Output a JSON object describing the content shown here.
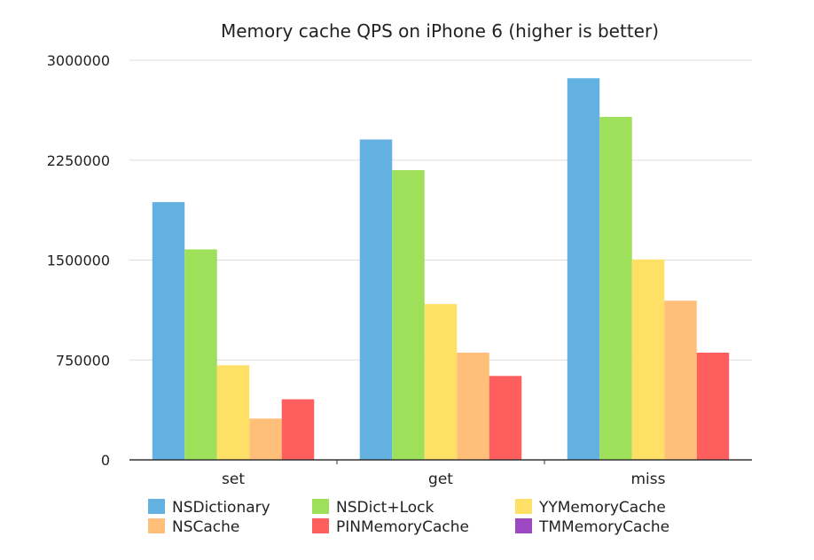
{
  "chart_data": {
    "type": "bar",
    "title": "Memory cache QPS on iPhone 6 (higher is better)",
    "xlabel": "",
    "ylabel": "",
    "categories": [
      "set",
      "get",
      "miss"
    ],
    "ylim": [
      0,
      3000000
    ],
    "yticks": [
      "0",
      "750000",
      "1500000",
      "2250000",
      "3000000"
    ],
    "ytick_values": [
      0,
      750000,
      1500000,
      2250000,
      3000000
    ],
    "grid": true,
    "legend_position": "bottom",
    "series": [
      {
        "name": "NSDictionary",
        "color": "#62b1e0",
        "values": [
          1935000,
          2405000,
          2865000
        ]
      },
      {
        "name": "NSDict+Lock",
        "color": "#9ee05a",
        "values": [
          1580000,
          2175000,
          2575000
        ]
      },
      {
        "name": "YYMemoryCache",
        "color": "#ffe066",
        "values": [
          710000,
          1170000,
          1505000
        ]
      },
      {
        "name": "NSCache",
        "color": "#ffbf78",
        "values": [
          310000,
          805000,
          1195000
        ]
      },
      {
        "name": "PINMemoryCache",
        "color": "#fe5f5e",
        "values": [
          455000,
          630000,
          805000
        ]
      },
      {
        "name": "TMMemoryCache",
        "color": "#9b48c2",
        "values": [
          0,
          0,
          0
        ]
      }
    ]
  }
}
